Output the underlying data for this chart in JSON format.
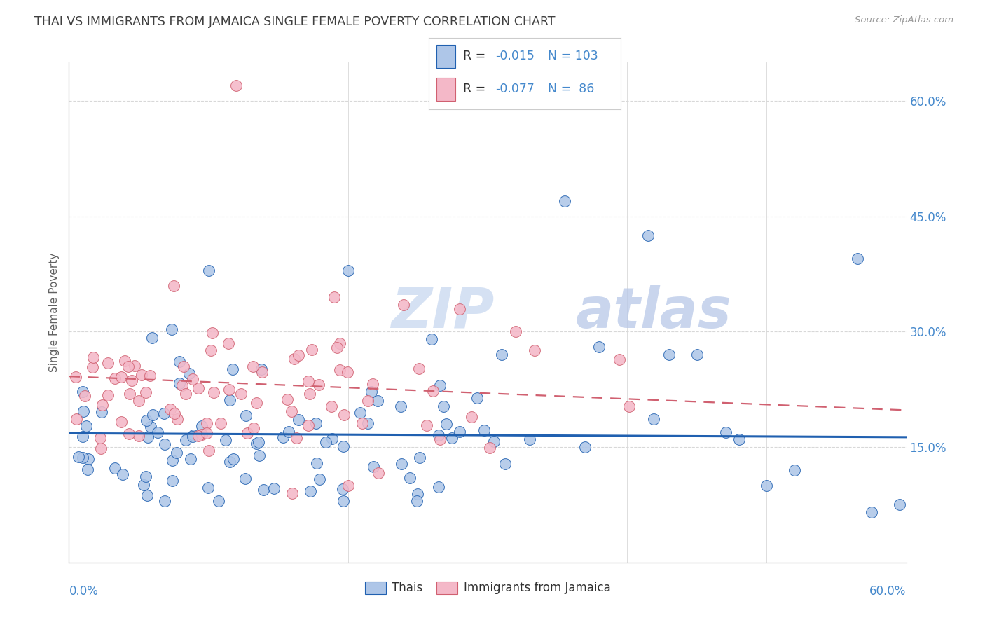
{
  "title": "THAI VS IMMIGRANTS FROM JAMAICA SINGLE FEMALE POVERTY CORRELATION CHART",
  "source": "Source: ZipAtlas.com",
  "ylabel": "Single Female Poverty",
  "thai_color": "#aec6e8",
  "jam_color": "#f4b8c8",
  "trendline_thai_color": "#2060b0",
  "trendline_jam_color": "#d06070",
  "watermark_zip_color": "#c8d8f0",
  "watermark_atlas_color": "#b8c8e8",
  "background_color": "#ffffff",
  "grid_color": "#d8d8d8",
  "title_color": "#404040",
  "axis_label_color": "#4488cc",
  "source_color": "#999999",
  "ylabel_color": "#606060",
  "legend_text_color": "#303030",
  "legend_value_color": "#4488cc",
  "ytick_vals": [
    0.15,
    0.3,
    0.45,
    0.6
  ],
  "ytick_labels": [
    "15.0%",
    "30.0%",
    "45.0%",
    "60.0%"
  ],
  "xlim": [
    0.0,
    0.6
  ],
  "ylim": [
    0.0,
    0.65
  ],
  "thai_trend_y0": 0.168,
  "thai_trend_y1": 0.163,
  "jam_trend_y0": 0.242,
  "jam_trend_y1": 0.198
}
